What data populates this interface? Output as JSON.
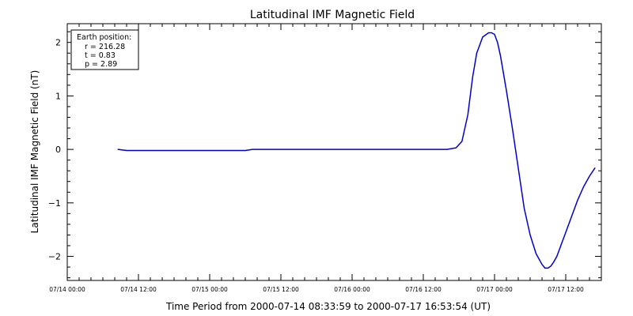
{
  "chart_data": {
    "type": "line",
    "title": "Latitudinal IMF Magnetic Field",
    "xlabel": "Time Period from 2000-07-14 08:33:59 to 2000-07-17 16:53:54 (UT)",
    "ylabel": "Latitudinal IMF Magnetic Field (nT)",
    "x_unit": "hours since 07/14 00:00",
    "xlim": [
      0,
      90
    ],
    "ylim": [
      -2.45,
      2.35
    ],
    "x_ticks": [
      0,
      12,
      24,
      36,
      48,
      60,
      72,
      84
    ],
    "x_tick_labels": [
      "07/14 00:00",
      "07/14 12:00",
      "07/15 00:00",
      "07/15 12:00",
      "07/16 00:00",
      "07/16 12:00",
      "07/17 00:00",
      "07/17 12:00"
    ],
    "y_ticks": [
      -2,
      -1,
      0,
      1,
      2
    ],
    "y_tick_labels": [
      "−2",
      "−1",
      "0",
      "1",
      "2"
    ],
    "legend": {
      "heading": "Earth position:",
      "lines": [
        "r = 216.28",
        "t = 0.83",
        "p = 2.89"
      ],
      "placement": "top-left"
    },
    "series": [
      {
        "color": "#0000cc",
        "x": [
          8.57,
          10.0,
          12.0,
          18.0,
          24.0,
          30.0,
          31.2,
          36.0,
          48.0,
          60.0,
          64.0,
          65.5,
          66.5,
          67.5,
          68.3,
          69.0,
          70.0,
          71.0,
          71.5,
          72.0,
          72.5,
          73.0,
          74.0,
          75.0,
          76.0,
          77.0,
          78.0,
          79.0,
          80.0,
          80.5,
          81.0,
          81.5,
          82.0,
          82.5,
          83.0,
          84.0,
          85.0,
          86.0,
          87.0,
          88.0,
          88.9
        ],
        "y": [
          0.0,
          -0.02,
          -0.02,
          -0.02,
          -0.02,
          -0.02,
          0.0,
          0.0,
          0.0,
          0.0,
          0.0,
          0.03,
          0.15,
          0.65,
          1.35,
          1.8,
          2.1,
          2.18,
          2.18,
          2.15,
          2.0,
          1.75,
          1.1,
          0.4,
          -0.35,
          -1.1,
          -1.6,
          -1.95,
          -2.15,
          -2.22,
          -2.22,
          -2.18,
          -2.1,
          -2.0,
          -1.85,
          -1.55,
          -1.25,
          -0.95,
          -0.7,
          -0.5,
          -0.35
        ]
      }
    ]
  }
}
